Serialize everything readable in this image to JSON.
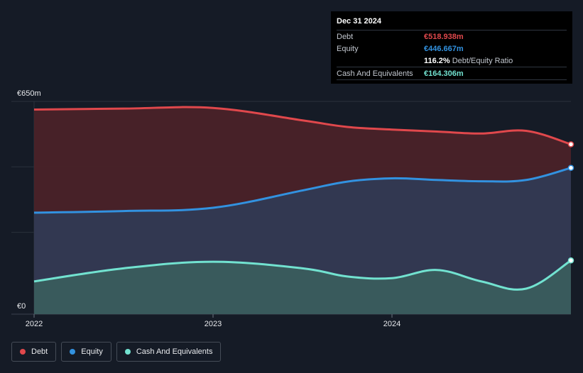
{
  "chart_data": {
    "type": "area",
    "x": [
      2022.0,
      2022.5,
      2023.0,
      2023.5,
      2023.75,
      2024.0,
      2024.25,
      2024.5,
      2024.75,
      2025.0
    ],
    "series": [
      {
        "name": "Debt",
        "color": "#e0484c",
        "values": [
          625,
          628,
          630,
          592,
          572,
          564,
          558,
          552,
          560,
          519
        ]
      },
      {
        "name": "Equity",
        "color": "#3292e0",
        "values": [
          310,
          315,
          325,
          378,
          405,
          415,
          410,
          406,
          410,
          447
        ]
      },
      {
        "name": "Cash And Equivalents",
        "color": "#72e2d0",
        "values": [
          100,
          140,
          160,
          140,
          115,
          110,
          135,
          100,
          78,
          164
        ]
      }
    ],
    "xticks": [
      "2022",
      "2023",
      "2024"
    ],
    "ylabels": {
      "top": "€650m",
      "bottom": "€0"
    },
    "ylim": [
      0,
      650
    ],
    "grid": true
  },
  "tooltip": {
    "date": "Dec 31 2024",
    "rows": [
      {
        "label": "Debt",
        "value": "€518.938m",
        "color": "#e0484c"
      },
      {
        "label": "Equity",
        "value": "€446.667m",
        "color": "#3292e0"
      },
      {
        "label": "",
        "value": "116.2%",
        "suffix": "Debt/Equity Ratio",
        "color": "#ffffff"
      },
      {
        "label": "Cash And Equivalents",
        "value": "€164.306m",
        "color": "#72e2d0"
      }
    ]
  },
  "legend": [
    {
      "label": "Debt",
      "color": "#e0484c"
    },
    {
      "label": "Equity",
      "color": "#3292e0"
    },
    {
      "label": "Cash And Equivalents",
      "color": "#72e2d0"
    }
  ]
}
